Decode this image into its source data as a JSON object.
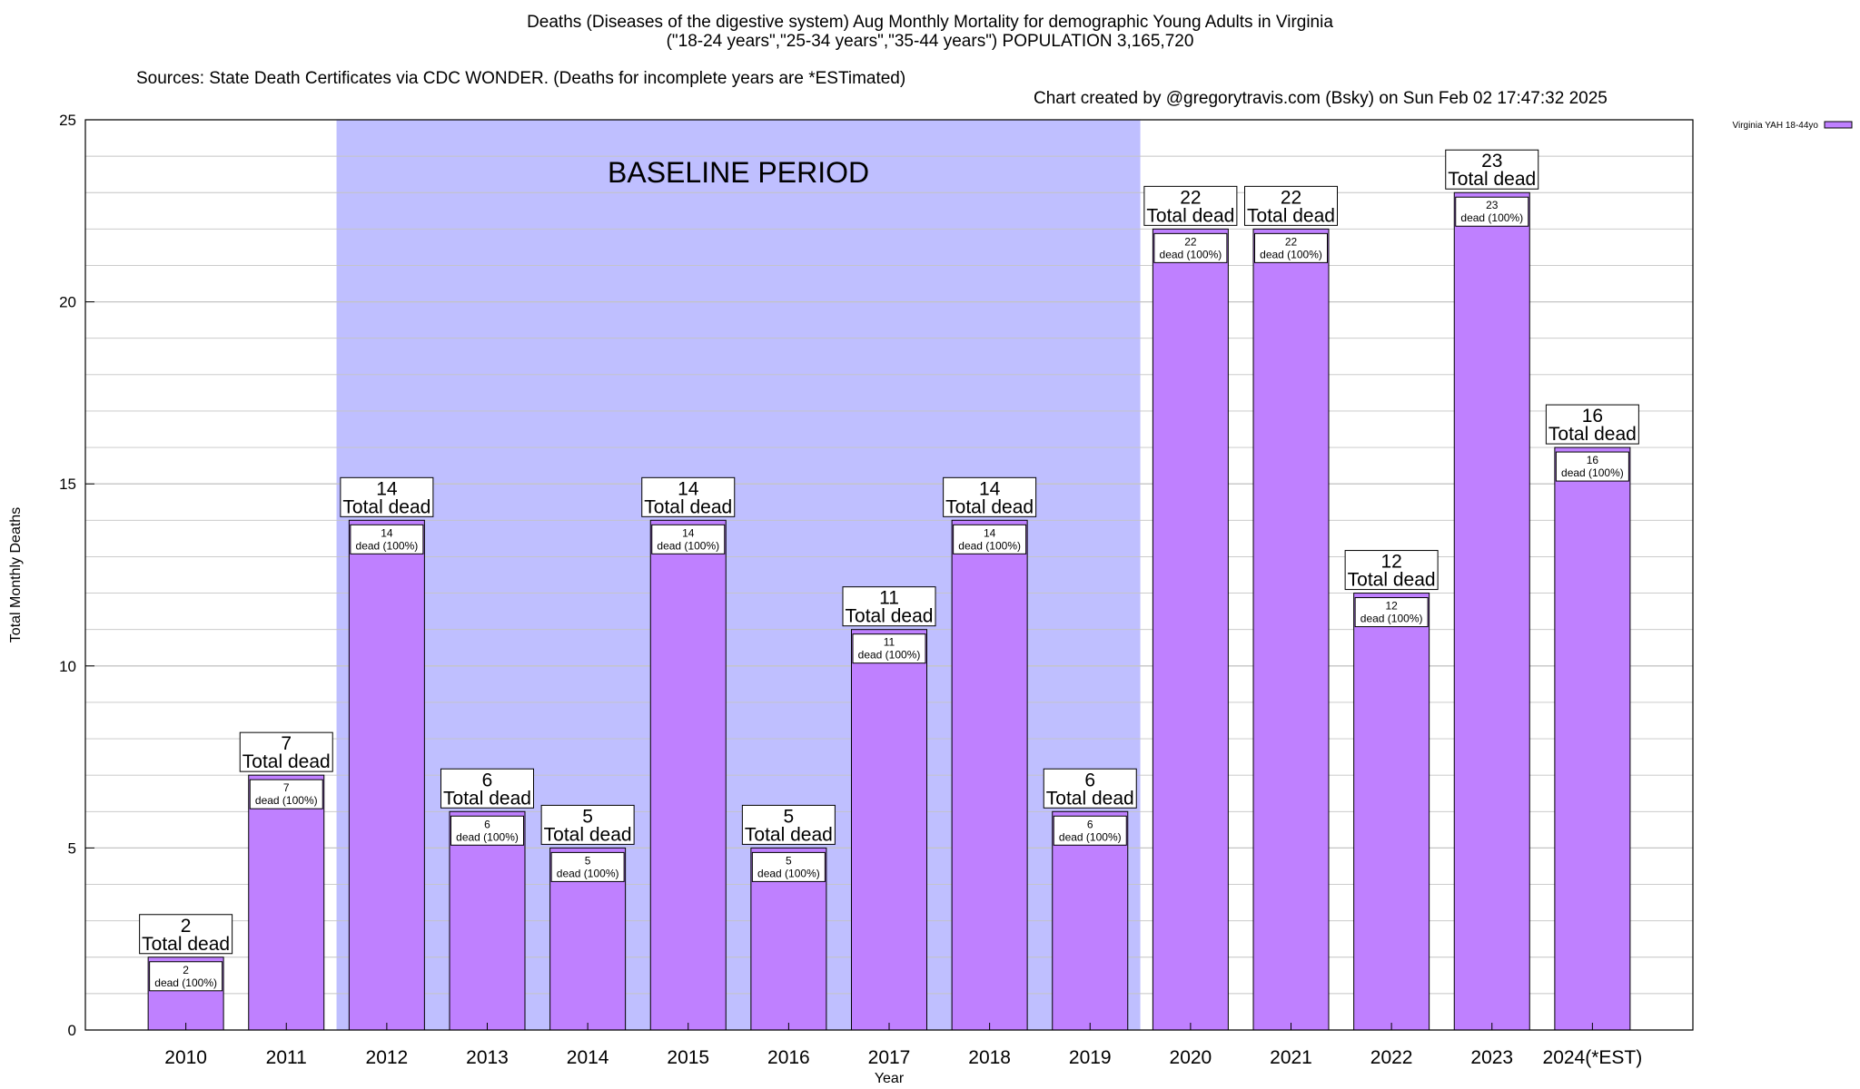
{
  "title": {
    "line1": "Deaths (Diseases of the digestive system) Aug Monthly Mortality for demographic Young Adults in Virginia",
    "line2": "(\"18-24 years\",\"25-34 years\",\"35-44 years\") POPULATION 3,165,720",
    "source": "Sources: State Death Certificates via CDC WONDER. (Deaths for incomplete years are *ESTimated)",
    "credit": "Chart created by @gregorytravis.com (Bsky) on Sun Feb 02 17:47:32 2025"
  },
  "chart_data": {
    "type": "bar",
    "categories": [
      "2010",
      "2011",
      "2012",
      "2013",
      "2014",
      "2015",
      "2016",
      "2017",
      "2018",
      "2019",
      "2020",
      "2021",
      "2022",
      "2023",
      "2024(*EST)"
    ],
    "series": [
      {
        "name": "Virginia YAH 18-44yo",
        "values": [
          2,
          7,
          14,
          6,
          5,
          14,
          5,
          11,
          14,
          6,
          22,
          22,
          12,
          23,
          16
        ]
      }
    ],
    "total_label": "Total dead",
    "inner_label": "dead (100%)",
    "xlabel": "Year",
    "ylabel": "Total Monthly Deaths",
    "ylim": [
      0,
      25
    ],
    "yticks": [
      0,
      5,
      10,
      15,
      20,
      25
    ],
    "grid": true,
    "legend_position": "top-right",
    "baseline": {
      "label": "BASELINE PERIOD",
      "from": "2012",
      "to": "2019"
    },
    "colors": {
      "bar": "#bf80ff",
      "baseline": "#bfbfff"
    }
  }
}
